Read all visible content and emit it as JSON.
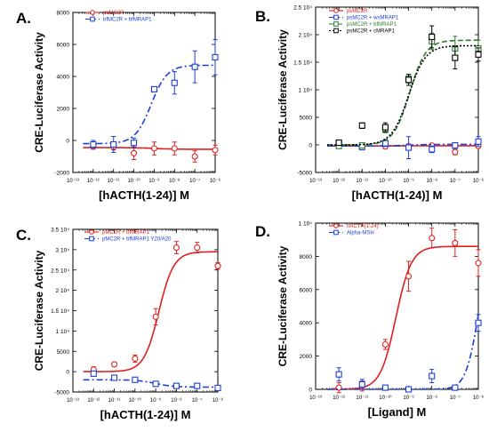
{
  "chart_data": [
    {
      "panel": "A.",
      "type": "scatter",
      "x_scale": "log",
      "xlim": [
        1e-13,
        1e-06
      ],
      "ylim": [
        -2000,
        8000
      ],
      "xlabel": "[hACTH(1-24)] M",
      "ylabel": "CRE-Luciferase Activity",
      "y_ticks": [
        "-2000",
        "0",
        "2000",
        "4000",
        "6000",
        "8000"
      ],
      "x_ticks": [
        "10⁻¹³",
        "10⁻¹²",
        "10⁻¹¹",
        "10⁻¹⁰",
        "10⁻⁹",
        "10⁻⁸",
        "10⁻⁷",
        "10⁻⁶"
      ],
      "y_tick_values": [
        -2000,
        0,
        2000,
        4000,
        6000,
        8000
      ],
      "legend": {
        "placement": "top-left"
      },
      "series": [
        {
          "name": "psMC2R",
          "marker": "circle",
          "color": "#e02020",
          "dash": "solid",
          "x": [
            1e-12,
            1e-11,
            1e-10,
            1e-09,
            1e-08,
            1e-07,
            1e-06
          ],
          "y": [
            -350,
            -400,
            -800,
            -500,
            -500,
            -1000,
            -600
          ],
          "err": [
            200,
            200,
            400,
            400,
            400,
            350,
            300
          ],
          "fit": {
            "bottom": -450,
            "top": -550,
            "logec50": -9,
            "hill": 1
          }
        },
        {
          "name": "bfMC2R + bfMRAP1",
          "marker": "square",
          "color": "#1c3fd8",
          "dash": "dashdot",
          "x": [
            1e-12,
            1e-11,
            1e-10,
            1e-09,
            1e-08,
            1e-07,
            1e-06
          ],
          "y": [
            -250,
            -250,
            -150,
            3200,
            3600,
            4600,
            5200
          ],
          "err": [
            250,
            500,
            300,
            150,
            700,
            1000,
            1100
          ],
          "fit": {
            "bottom": -200,
            "top": 4700,
            "logec50": -9.15,
            "hill": 1.1
          }
        }
      ]
    },
    {
      "panel": "B.",
      "type": "scatter",
      "x_scale": "log",
      "xlim": [
        1e-13,
        1e-06
      ],
      "ylim": [
        -5000,
        25000
      ],
      "xlabel": "[hACTH(1-24)] M",
      "ylabel": "CRE-Luciferase Activity",
      "y_ticks": [
        "-5000",
        "0",
        "5000",
        "1 10⁴",
        "1.5 10⁴",
        "2 10⁴",
        "2.5 10⁴"
      ],
      "x_ticks": [
        "10⁻¹³",
        "10⁻¹²",
        "10⁻¹¹",
        "10⁻¹⁰",
        "10⁻⁹",
        "10⁻⁸",
        "10⁻⁷",
        "10⁻⁶"
      ],
      "y_tick_values": [
        -5000,
        0,
        5000,
        10000,
        15000,
        20000,
        25000
      ],
      "legend": {
        "placement": "top-left"
      },
      "series": [
        {
          "name": "psMC2R",
          "marker": "circle",
          "color": "#e02020",
          "dash": "solid",
          "x": [
            1e-12,
            1e-11,
            1e-10,
            1e-09,
            1e-08,
            1e-07,
            1e-06
          ],
          "y": [
            -200,
            -200,
            -300,
            -200,
            -100,
            -1300,
            -200
          ],
          "err": [
            300,
            300,
            400,
            300,
            300,
            500,
            400
          ],
          "fit": {
            "bottom": -200,
            "top": -150,
            "logec50": -9,
            "hill": 1
          }
        },
        {
          "name": "psMC2R + wsMRAP1",
          "marker": "square",
          "color": "#1c3fd8",
          "dash": "dashdot",
          "x": [
            1e-12,
            1e-11,
            1e-10,
            1e-09,
            1e-08,
            1e-07,
            1e-06
          ],
          "y": [
            300,
            -400,
            300,
            -500,
            -800,
            -100,
            600
          ],
          "err": [
            400,
            500,
            600,
            2000,
            600,
            500,
            900
          ],
          "fit": {
            "bottom": -200,
            "top": 100,
            "logec50": -9,
            "hill": 1
          }
        },
        {
          "name": "psMC2R + bfMRAP1",
          "marker": "square",
          "color": "#2e7d32",
          "dash": "dashed",
          "x": [
            1e-12,
            1e-11,
            1e-10,
            1e-09,
            1e-08,
            1e-07,
            1e-06
          ],
          "y": [
            -200,
            -100,
            2800,
            12000,
            18800,
            17500,
            17500
          ],
          "err": [
            300,
            400,
            600,
            800,
            1500,
            2200,
            1500
          ],
          "fit": {
            "bottom": 0,
            "top": 19000,
            "logec50": -8.95,
            "hill": 1.25
          }
        },
        {
          "name": "psMC2R + cMRAP1",
          "marker": "square",
          "color": "#000000",
          "dash": "dotted",
          "x": [
            1e-12,
            1e-11,
            1e-10,
            1e-09,
            1e-08,
            1e-07,
            1e-06
          ],
          "y": [
            400,
            3500,
            3200,
            11800,
            19600,
            15800,
            16400
          ],
          "err": [
            500,
            500,
            800,
            1000,
            2000,
            2000,
            1200
          ],
          "fit": {
            "bottom": 0,
            "top": 18000,
            "logec50": -9,
            "hill": 1.2
          }
        }
      ]
    },
    {
      "panel": "C.",
      "type": "scatter",
      "x_scale": "log",
      "xlim": [
        1e-13,
        1e-06
      ],
      "ylim": [
        -5000,
        35000
      ],
      "xlabel": "[hACTH(1-24)] M",
      "ylabel": "CRE-Luciferase Activity",
      "y_ticks": [
        "-5000",
        "0",
        "5000",
        "1 10⁴",
        "1.5 10⁴",
        "2 10⁴",
        "2.5 10⁴",
        "3 10⁴",
        "3.5 10⁴"
      ],
      "x_ticks": [
        "10⁻¹³",
        "10⁻¹²",
        "10⁻¹¹",
        "10⁻¹⁰",
        "10⁻⁹",
        "10⁻⁸",
        "10⁻⁷",
        "10⁻⁶"
      ],
      "y_tick_values": [
        -5000,
        0,
        5000,
        10000,
        15000,
        20000,
        25000,
        30000,
        35000
      ],
      "legend": {
        "placement": "top-left"
      },
      "series": [
        {
          "name": "pMC2R + bfMRAP1",
          "marker": "circle",
          "color": "#e02020",
          "dash": "solid",
          "x": [
            1e-12,
            1e-11,
            1e-10,
            1e-09,
            1e-08,
            1e-07,
            1e-06
          ],
          "y": [
            500,
            1800,
            3200,
            13500,
            30500,
            30500,
            26000
          ],
          "err": [
            700,
            500,
            900,
            2000,
            1500,
            1300,
            800
          ],
          "fit": {
            "bottom": 0,
            "top": 29500,
            "logec50": -8.85,
            "hill": 1.2
          }
        },
        {
          "name": "pMC2R + bfMRAP1 Y20/A20",
          "marker": "square",
          "color": "#1c3fd8",
          "dash": "dashdot",
          "x": [
            1e-12,
            1e-11,
            1e-10,
            1e-09,
            1e-08,
            1e-07,
            1e-06
          ],
          "y": [
            -500,
            -1500,
            -2000,
            -3000,
            -3500,
            -3500,
            -4000
          ],
          "err": [
            300,
            400,
            400,
            500,
            500,
            500,
            500
          ],
          "fit": {
            "bottom": -2000,
            "top": -3800,
            "logec50": -9,
            "hill": 1
          }
        }
      ]
    },
    {
      "panel": "D.",
      "type": "scatter",
      "x_scale": "log",
      "xlim": [
        1e-13,
        1e-06
      ],
      "ylim": [
        0,
        10000
      ],
      "xlabel": "[Ligand] M",
      "ylabel": "CRE-Luciferase Activity",
      "y_ticks": [
        "0",
        "2000",
        "4000",
        "6000",
        "8000",
        "1 10⁴"
      ],
      "x_ticks": [
        "10⁻¹³",
        "10⁻¹²",
        "10⁻¹¹",
        "10⁻¹⁰",
        "10⁻⁹",
        "10⁻⁸",
        "10⁻⁷",
        "10⁻⁶"
      ],
      "y_tick_values": [
        0,
        2000,
        4000,
        6000,
        8000,
        10000
      ],
      "legend": {
        "placement": "top-left"
      },
      "series": [
        {
          "name": "hACTH(1-24)",
          "marker": "circle",
          "color": "#e02020",
          "dash": "solid",
          "x": [
            1e-12,
            1e-11,
            1e-10,
            1e-09,
            1e-08,
            1e-07,
            1e-06
          ],
          "y": [
            100,
            200,
            2700,
            6800,
            9100,
            8800,
            7600
          ],
          "err": [
            300,
            300,
            300,
            900,
            600,
            800,
            800
          ],
          "fit": {
            "bottom": 0,
            "top": 8600,
            "logec50": -9.55,
            "hill": 1.3
          }
        },
        {
          "name": "Alpha-MSH",
          "marker": "square",
          "color": "#1c3fd8",
          "dash": "dashdot",
          "x": [
            1e-12,
            1e-11,
            1e-10,
            1e-09,
            1e-08,
            1e-07,
            1e-06
          ],
          "y": [
            900,
            300,
            100,
            0,
            800,
            100,
            4000
          ],
          "err": [
            400,
            300,
            100,
            100,
            400,
            100,
            500
          ],
          "fit": {
            "bottom": 0,
            "top": 9000,
            "logec50": -6.0,
            "hill": 1.6
          }
        }
      ]
    }
  ]
}
